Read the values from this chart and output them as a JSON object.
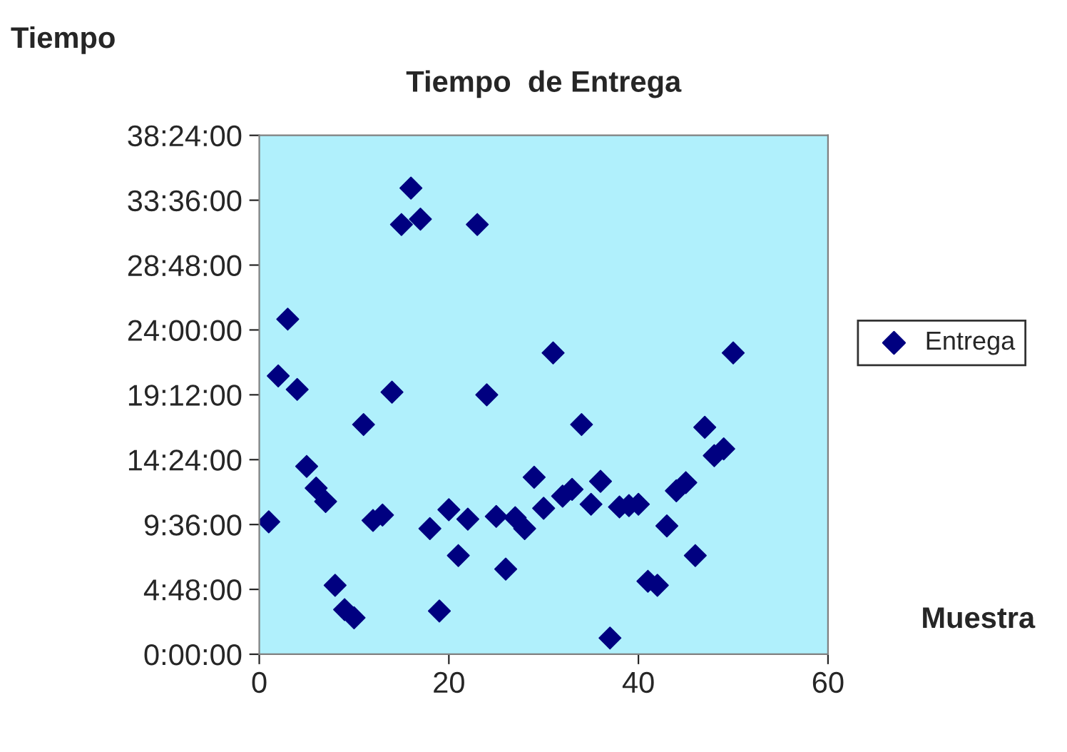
{
  "chart_data": {
    "type": "scatter",
    "title": "Tiempo  de Entrega",
    "xlabel": "Muestra",
    "ylabel": "Tiempo",
    "x": [
      1,
      2,
      3,
      4,
      5,
      6,
      7,
      8,
      9,
      10,
      11,
      12,
      13,
      14,
      15,
      16,
      17,
      18,
      19,
      20,
      21,
      22,
      23,
      24,
      25,
      26,
      27,
      28,
      29,
      30,
      31,
      32,
      33,
      34,
      35,
      36,
      37,
      38,
      39,
      40,
      41,
      42,
      43,
      44,
      45,
      46,
      47,
      48,
      49,
      50
    ],
    "series": [
      {
        "name": "Entrega",
        "color": "#000080",
        "values": [
          9.8,
          20.6,
          24.8,
          19.6,
          13.9,
          12.3,
          11.3,
          5.1,
          3.3,
          2.7,
          17.0,
          9.9,
          10.3,
          19.4,
          31.8,
          34.5,
          32.2,
          9.3,
          3.2,
          10.7,
          7.3,
          10.0,
          31.8,
          19.2,
          10.2,
          6.3,
          10.1,
          9.3,
          13.1,
          10.8,
          22.3,
          11.7,
          12.2,
          17.0,
          11.1,
          12.8,
          1.2,
          10.9,
          11.0,
          11.1,
          5.4,
          5.1,
          9.5,
          12.1,
          12.7,
          7.3,
          16.8,
          14.7,
          15.2,
          22.3
        ]
      }
    ],
    "marker": "diamond",
    "legend": "right",
    "grid": false,
    "xlim": [
      0,
      60
    ],
    "xticks": [
      0,
      20,
      40,
      60
    ],
    "ylim": [
      0,
      38.4
    ],
    "yticks": [
      {
        "value": 0,
        "label": "0:00:00"
      },
      {
        "value": 4.8,
        "label": "4:48:00"
      },
      {
        "value": 9.6,
        "label": "9:36:00"
      },
      {
        "value": 14.4,
        "label": "14:24:00"
      },
      {
        "value": 19.2,
        "label": "19:12:00"
      },
      {
        "value": 24,
        "label": "24:00:00"
      },
      {
        "value": 28.8,
        "label": "28:48:00"
      },
      {
        "value": 33.6,
        "label": "33:36:00"
      },
      {
        "value": 38.4,
        "label": "38:24:00"
      }
    ]
  }
}
